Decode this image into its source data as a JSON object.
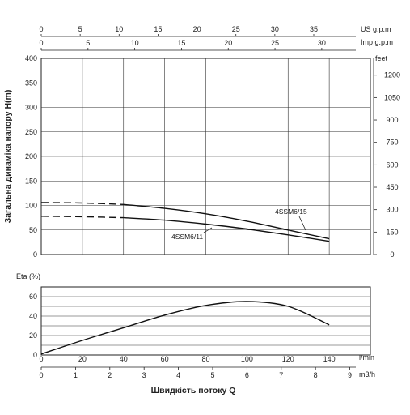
{
  "chart_data": [
    {
      "type": "line",
      "ylabel": "Загальна динаміка напору H(m)",
      "ylim": [
        0,
        400
      ],
      "yticks": [
        0,
        50,
        100,
        150,
        200,
        250,
        300,
        350,
        400
      ],
      "xlim_lmin": [
        0,
        160
      ],
      "series": [
        {
          "name": "4SSM6/15",
          "dashed": {
            "x": [
              0,
              20,
              40
            ],
            "y": [
              106,
              105,
              102
            ]
          },
          "solid": {
            "x": [
              40,
              60,
              80,
              100,
              120,
              140
            ],
            "y": [
              102,
              94,
              83,
              68,
              50,
              32
            ]
          }
        },
        {
          "name": "4SSM6/11",
          "dashed": {
            "x": [
              0,
              20,
              40
            ],
            "y": [
              78,
              77,
              75
            ]
          },
          "solid": {
            "x": [
              40,
              60,
              80,
              100,
              120,
              140
            ],
            "y": [
              75,
              70,
              62,
              52,
              40,
              27
            ]
          }
        }
      ],
      "top_axes": [
        {
          "unit": "US g.p.m",
          "ticks": [
            "0",
            "5",
            "10",
            "15",
            "20",
            "25",
            "30",
            "35"
          ],
          "max": 42.27
        },
        {
          "unit": "Imp g.p.m",
          "ticks": [
            "0",
            "5",
            "10",
            "15",
            "20",
            "25",
            "30"
          ],
          "max": 35.2
        }
      ],
      "right_axis": {
        "unit": "feet",
        "ticks": [
          "0",
          "150",
          "300",
          "450",
          "600",
          "750",
          "900",
          "1050",
          "1200"
        ],
        "values": [
          0,
          150,
          300,
          450,
          600,
          750,
          900,
          1050,
          1200
        ],
        "max": 1312.3
      }
    },
    {
      "type": "line",
      "ylabel": "Eta (%)",
      "ylim": [
        0,
        70
      ],
      "yticks": [
        0,
        20,
        40,
        60
      ],
      "series": [
        {
          "x": [
            0,
            20,
            40,
            60,
            80,
            100,
            120,
            140
          ],
          "y": [
            1,
            15,
            28,
            41,
            51,
            55,
            50,
            31
          ]
        }
      ],
      "x_axes": [
        {
          "unit": "l/min",
          "ticks": [
            "0",
            "20",
            "40",
            "60",
            "80",
            "100",
            "120",
            "140"
          ],
          "values": [
            0,
            20,
            40,
            60,
            80,
            100,
            120,
            140
          ],
          "max": 160
        },
        {
          "unit": "m3/h",
          "ticks": [
            "0",
            "1",
            "2",
            "3",
            "4",
            "5",
            "6",
            "7",
            "8",
            "9"
          ],
          "values": [
            0,
            1,
            2,
            3,
            4,
            5,
            6,
            7,
            8,
            9
          ],
          "max": 9.6
        }
      ],
      "xlabel": "Швидкість потоку Q"
    }
  ]
}
